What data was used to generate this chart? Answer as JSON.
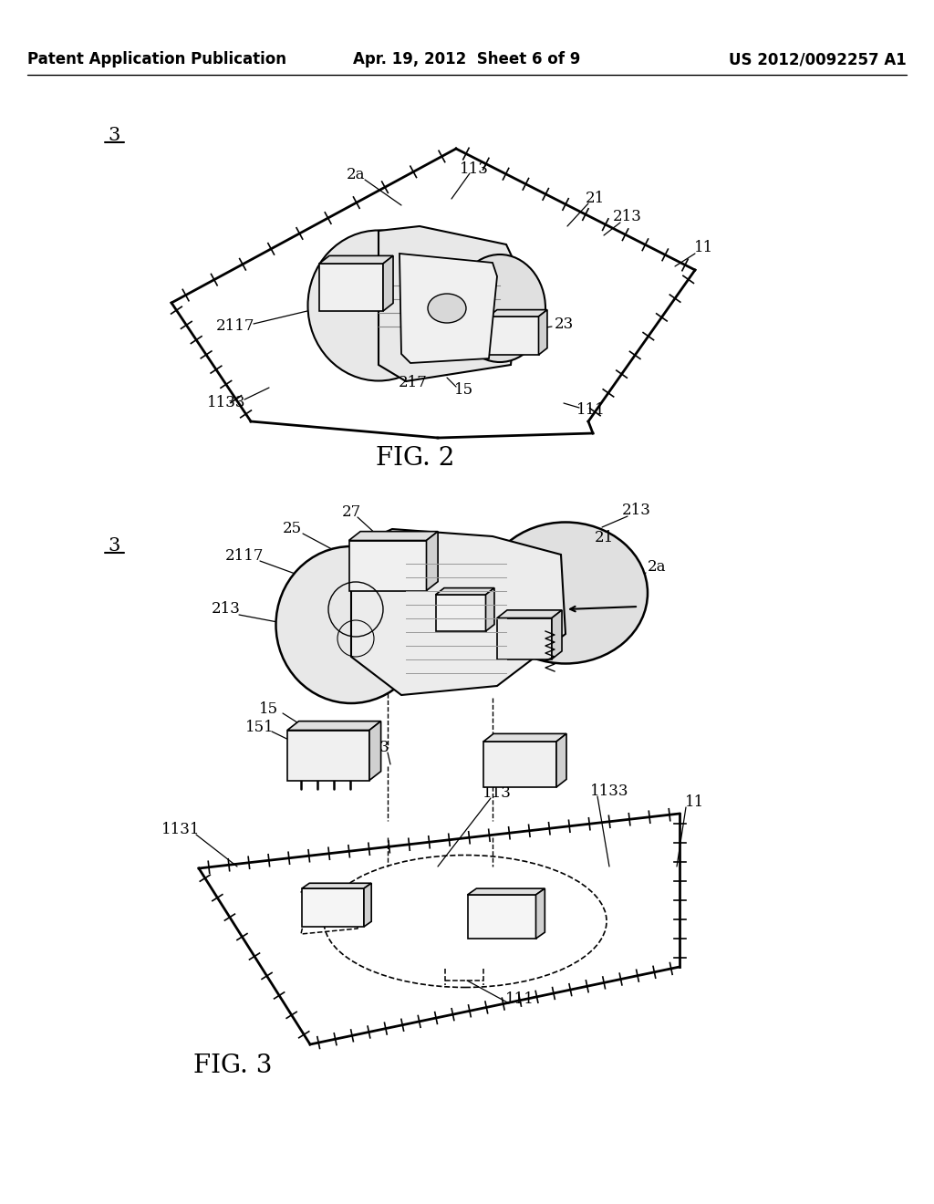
{
  "bg_color": "#ffffff",
  "header_left": "Patent Application Publication",
  "header_center": "Apr. 19, 2012  Sheet 6 of 9",
  "header_right": "US 2012/0092257 A1",
  "line_color": "#000000",
  "text_color": "#000000",
  "fig2_caption": "FIG. 2",
  "fig3_caption": "FIG. 3",
  "fig2_num_label": "3",
  "fig3_num_label": "3"
}
